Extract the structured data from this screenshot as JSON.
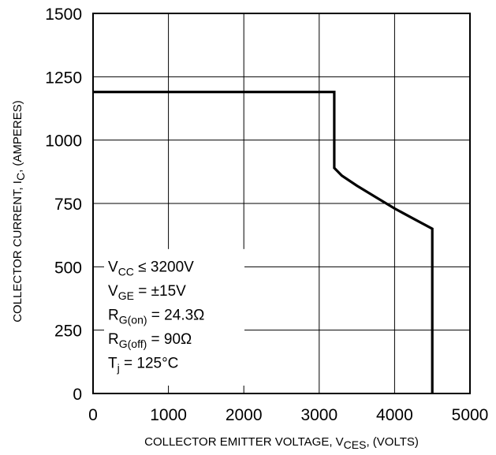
{
  "chart_data": {
    "type": "line",
    "xlabel": "COLLECTOR EMITTER VOLTAGE, V",
    "xlabel_sub": "CES",
    "xlabel_suffix": ", (VOLTS)",
    "ylabel": "COLLECTOR CURRENT, I",
    "ylabel_sub": "C",
    "ylabel_suffix": ", (AMPERES)",
    "xlim": [
      0,
      5000
    ],
    "ylim": [
      0,
      1500
    ],
    "x_ticks": [
      0,
      1000,
      2000,
      3000,
      4000,
      5000
    ],
    "y_ticks": [
      0,
      250,
      500,
      750,
      1000,
      1250,
      1500
    ],
    "grid": true,
    "series": [
      {
        "color": "#000000",
        "x": [
          0,
          3200,
          3200,
          3300,
          3500,
          3750,
          4000,
          4250,
          4500,
          4500
        ],
        "y": [
          1190,
          1190,
          890,
          860,
          820,
          775,
          730,
          690,
          650,
          0
        ]
      }
    ],
    "annotations": [
      {
        "main": "V",
        "sub": "CC",
        "rest": " ≤ 3200V"
      },
      {
        "main": "V",
        "sub": "GE",
        "rest": " = ±15V"
      },
      {
        "main": "R",
        "sub": "G(on)",
        "rest": " = 24.3Ω"
      },
      {
        "main": "R",
        "sub": "G(off)",
        "rest": " = 90Ω"
      },
      {
        "main": "T",
        "sub": "j",
        "rest": " = 125°C"
      }
    ]
  }
}
